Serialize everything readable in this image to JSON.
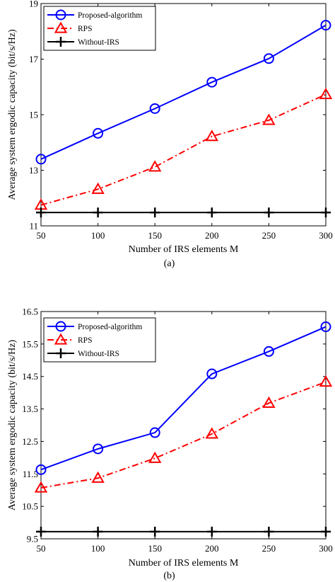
{
  "chart_data": [
    {
      "type": "line",
      "caption": "(a)",
      "xlabel": "Number of IRS elements M",
      "ylabel": "Average system ergodic capacity (bit/s/Hz)",
      "x": [
        50,
        100,
        150,
        200,
        250,
        300
      ],
      "xticks": [
        "50",
        "100",
        "150",
        "200",
        "250",
        "300"
      ],
      "xlim": [
        50,
        300
      ],
      "yticks": [
        "11",
        "13",
        "15",
        "17",
        "19"
      ],
      "ytick_values": [
        11,
        13,
        15,
        17,
        19
      ],
      "ylim": [
        11,
        19
      ],
      "grid": false,
      "legend_position": "top-left",
      "series": [
        {
          "name": "Proposed-algorithm",
          "values": [
            13.4,
            14.33,
            15.22,
            16.17,
            17.02,
            18.22
          ],
          "color": "#0000ff",
          "marker": "circle",
          "dash": "solid"
        },
        {
          "name": "RPS",
          "values": [
            11.75,
            12.32,
            13.12,
            14.22,
            14.8,
            15.73
          ],
          "color": "#ff0000",
          "marker": "triangle",
          "dash": "dashdot"
        },
        {
          "name": "Without-IRS",
          "values": [
            11.48,
            11.48,
            11.48,
            11.48,
            11.48,
            11.48
          ],
          "color": "#000000",
          "marker": "plus",
          "dash": "solid"
        }
      ]
    },
    {
      "type": "line",
      "caption": "(b)",
      "xlabel": "Number of IRS elements M",
      "ylabel": "Average system ergodic capacity (bit/s/Hz)",
      "x": [
        50,
        100,
        150,
        200,
        250,
        300
      ],
      "xticks": [
        "50",
        "100",
        "150",
        "200",
        "250",
        "300"
      ],
      "xlim": [
        50,
        300
      ],
      "yticks": [
        "9.5",
        "10.5",
        "11.5",
        "12.5",
        "13.5",
        "14.5",
        "15.5",
        "16.5"
      ],
      "ytick_values": [
        9.5,
        10.5,
        11.5,
        12.5,
        13.5,
        14.5,
        15.5,
        16.5
      ],
      "ylim": [
        9.5,
        16.5
      ],
      "grid": false,
      "legend_position": "top-left",
      "series": [
        {
          "name": "Proposed-algorithm",
          "values": [
            11.63,
            12.27,
            12.77,
            14.58,
            15.27,
            16.03
          ],
          "color": "#0000ff",
          "marker": "circle",
          "dash": "solid"
        },
        {
          "name": "RPS",
          "values": [
            11.07,
            11.37,
            11.98,
            12.73,
            13.68,
            14.33
          ],
          "color": "#ff0000",
          "marker": "triangle",
          "dash": "dashdot"
        },
        {
          "name": "Without-IRS",
          "values": [
            9.72,
            9.72,
            9.72,
            9.72,
            9.72,
            9.72
          ],
          "color": "#000000",
          "marker": "plus",
          "dash": "solid"
        }
      ]
    }
  ]
}
